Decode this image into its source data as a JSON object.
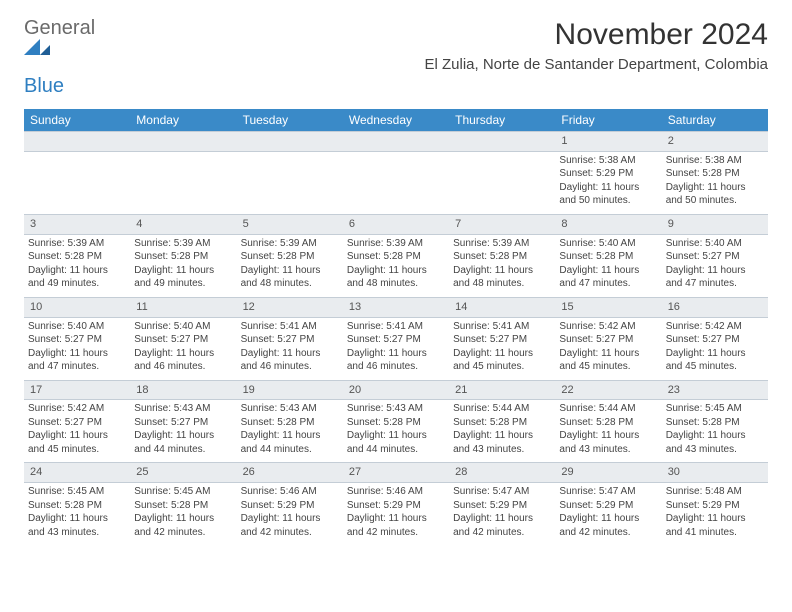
{
  "logo": {
    "general": "General",
    "blue": "Blue"
  },
  "title": "November 2024",
  "location": "El Zulia, Norte de Santander Department, Colombia",
  "colors": {
    "header_bg": "#3a8ac8",
    "daynum_bg": "#e9ecef",
    "border": "#c4cdd6",
    "text": "#333333",
    "logo_gray": "#6a6a6a",
    "logo_blue": "#2f7fc1"
  },
  "weekdays": [
    "Sunday",
    "Monday",
    "Tuesday",
    "Wednesday",
    "Thursday",
    "Friday",
    "Saturday"
  ],
  "weeks": [
    {
      "nums": [
        "",
        "",
        "",
        "",
        "",
        "1",
        "2"
      ],
      "cells": [
        null,
        null,
        null,
        null,
        null,
        {
          "sunrise": "5:38 AM",
          "sunset": "5:29 PM",
          "daylight": "11 hours and 50 minutes."
        },
        {
          "sunrise": "5:38 AM",
          "sunset": "5:28 PM",
          "daylight": "11 hours and 50 minutes."
        }
      ]
    },
    {
      "nums": [
        "3",
        "4",
        "5",
        "6",
        "7",
        "8",
        "9"
      ],
      "cells": [
        {
          "sunrise": "5:39 AM",
          "sunset": "5:28 PM",
          "daylight": "11 hours and 49 minutes."
        },
        {
          "sunrise": "5:39 AM",
          "sunset": "5:28 PM",
          "daylight": "11 hours and 49 minutes."
        },
        {
          "sunrise": "5:39 AM",
          "sunset": "5:28 PM",
          "daylight": "11 hours and 48 minutes."
        },
        {
          "sunrise": "5:39 AM",
          "sunset": "5:28 PM",
          "daylight": "11 hours and 48 minutes."
        },
        {
          "sunrise": "5:39 AM",
          "sunset": "5:28 PM",
          "daylight": "11 hours and 48 minutes."
        },
        {
          "sunrise": "5:40 AM",
          "sunset": "5:28 PM",
          "daylight": "11 hours and 47 minutes."
        },
        {
          "sunrise": "5:40 AM",
          "sunset": "5:27 PM",
          "daylight": "11 hours and 47 minutes."
        }
      ]
    },
    {
      "nums": [
        "10",
        "11",
        "12",
        "13",
        "14",
        "15",
        "16"
      ],
      "cells": [
        {
          "sunrise": "5:40 AM",
          "sunset": "5:27 PM",
          "daylight": "11 hours and 47 minutes."
        },
        {
          "sunrise": "5:40 AM",
          "sunset": "5:27 PM",
          "daylight": "11 hours and 46 minutes."
        },
        {
          "sunrise": "5:41 AM",
          "sunset": "5:27 PM",
          "daylight": "11 hours and 46 minutes."
        },
        {
          "sunrise": "5:41 AM",
          "sunset": "5:27 PM",
          "daylight": "11 hours and 46 minutes."
        },
        {
          "sunrise": "5:41 AM",
          "sunset": "5:27 PM",
          "daylight": "11 hours and 45 minutes."
        },
        {
          "sunrise": "5:42 AM",
          "sunset": "5:27 PM",
          "daylight": "11 hours and 45 minutes."
        },
        {
          "sunrise": "5:42 AM",
          "sunset": "5:27 PM",
          "daylight": "11 hours and 45 minutes."
        }
      ]
    },
    {
      "nums": [
        "17",
        "18",
        "19",
        "20",
        "21",
        "22",
        "23"
      ],
      "cells": [
        {
          "sunrise": "5:42 AM",
          "sunset": "5:27 PM",
          "daylight": "11 hours and 45 minutes."
        },
        {
          "sunrise": "5:43 AM",
          "sunset": "5:27 PM",
          "daylight": "11 hours and 44 minutes."
        },
        {
          "sunrise": "5:43 AM",
          "sunset": "5:28 PM",
          "daylight": "11 hours and 44 minutes."
        },
        {
          "sunrise": "5:43 AM",
          "sunset": "5:28 PM",
          "daylight": "11 hours and 44 minutes."
        },
        {
          "sunrise": "5:44 AM",
          "sunset": "5:28 PM",
          "daylight": "11 hours and 43 minutes."
        },
        {
          "sunrise": "5:44 AM",
          "sunset": "5:28 PM",
          "daylight": "11 hours and 43 minutes."
        },
        {
          "sunrise": "5:45 AM",
          "sunset": "5:28 PM",
          "daylight": "11 hours and 43 minutes."
        }
      ]
    },
    {
      "nums": [
        "24",
        "25",
        "26",
        "27",
        "28",
        "29",
        "30"
      ],
      "cells": [
        {
          "sunrise": "5:45 AM",
          "sunset": "5:28 PM",
          "daylight": "11 hours and 43 minutes."
        },
        {
          "sunrise": "5:45 AM",
          "sunset": "5:28 PM",
          "daylight": "11 hours and 42 minutes."
        },
        {
          "sunrise": "5:46 AM",
          "sunset": "5:29 PM",
          "daylight": "11 hours and 42 minutes."
        },
        {
          "sunrise": "5:46 AM",
          "sunset": "5:29 PM",
          "daylight": "11 hours and 42 minutes."
        },
        {
          "sunrise": "5:47 AM",
          "sunset": "5:29 PM",
          "daylight": "11 hours and 42 minutes."
        },
        {
          "sunrise": "5:47 AM",
          "sunset": "5:29 PM",
          "daylight": "11 hours and 42 minutes."
        },
        {
          "sunrise": "5:48 AM",
          "sunset": "5:29 PM",
          "daylight": "11 hours and 41 minutes."
        }
      ]
    }
  ],
  "labels": {
    "sunrise": "Sunrise: ",
    "sunset": "Sunset: ",
    "daylight": "Daylight: "
  }
}
